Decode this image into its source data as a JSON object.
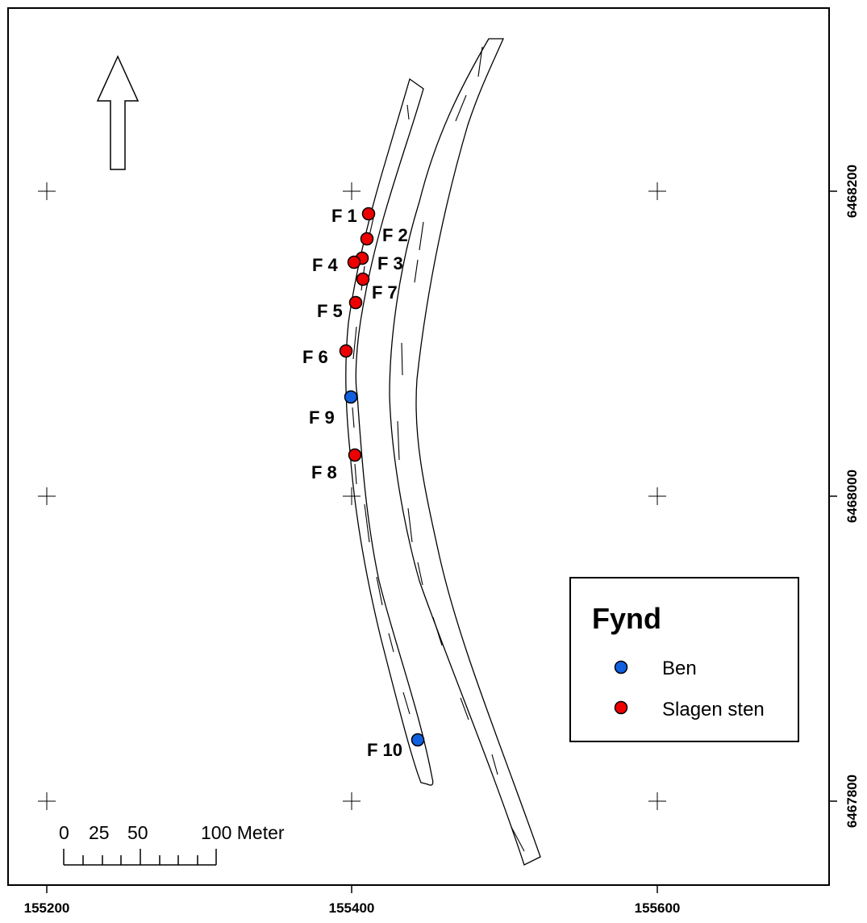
{
  "map": {
    "x_ticks": [
      "155200",
      "155400",
      "155600"
    ],
    "y_ticks": [
      "6468200",
      "6468000",
      "6467800"
    ]
  },
  "finds": [
    {
      "label": "F 1",
      "type": "Slagen sten"
    },
    {
      "label": "F 2",
      "type": "Slagen sten"
    },
    {
      "label": "F 3",
      "type": "Slagen sten"
    },
    {
      "label": "F 4",
      "type": "Slagen sten"
    },
    {
      "label": "F 7",
      "type": "Slagen sten"
    },
    {
      "label": "F 5",
      "type": "Slagen sten"
    },
    {
      "label": "F 6",
      "type": "Slagen sten"
    },
    {
      "label": "F 9",
      "type": "Ben"
    },
    {
      "label": "F 8",
      "type": "Slagen sten"
    },
    {
      "label": "F 10",
      "type": "Ben"
    }
  ],
  "legend": {
    "title": "Fynd",
    "items": [
      {
        "label": "Ben",
        "color": "#1060e0"
      },
      {
        "label": "Slagen sten",
        "color": "#ee0000"
      }
    ]
  },
  "scale_bar": {
    "labels": [
      "0",
      "25",
      "50",
      "100 Meter"
    ]
  },
  "colors": {
    "ben": "#1060e0",
    "slagen_sten": "#ee0000"
  }
}
